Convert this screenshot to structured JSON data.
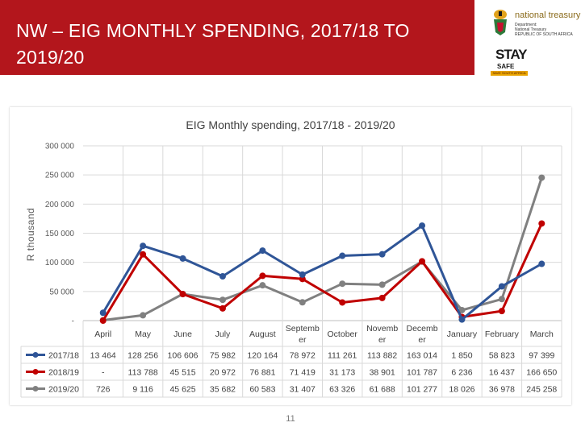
{
  "slide": {
    "title": "NW – EIG MONTHLY SPENDING, 2017/18 TO 2019/20",
    "page_number": "11"
  },
  "logos": {
    "national_treasury": {
      "name": "national treasury",
      "line1": "Department:",
      "line2": "National Treasury",
      "line3": "REPUBLIC OF SOUTH AFRICA"
    },
    "stay_safe": {
      "main": "STAY",
      "sub": "SAFE",
      "tagline": "SAVE SOUTH AFRICA"
    }
  },
  "colors": {
    "title_bar": "#b3161c",
    "series": [
      "#2f5597",
      "#c00000",
      "#808080"
    ]
  },
  "chart_data": {
    "type": "line",
    "title": "EIG Monthly spending, 2017/18 - 2019/20",
    "ylabel": "R thousand",
    "ylim": [
      0,
      300000
    ],
    "yticks": [
      "-",
      "50 000",
      "100 000",
      "150 000",
      "200 000",
      "250 000",
      "300 000"
    ],
    "grid": true,
    "legend": "table-below",
    "categories": [
      "April",
      "May",
      "June",
      "July",
      "August",
      "September",
      "October",
      "November",
      "December",
      "January",
      "February",
      "March"
    ],
    "category_lines": [
      [
        "April"
      ],
      [
        "May"
      ],
      [
        "June"
      ],
      [
        "July"
      ],
      [
        "August"
      ],
      [
        "Septemb",
        "er"
      ],
      [
        "October"
      ],
      [
        "Novemb",
        "er"
      ],
      [
        "Decemb",
        "er"
      ],
      [
        "January"
      ],
      [
        "February"
      ],
      [
        "March"
      ]
    ],
    "series": [
      {
        "name": "2017/18",
        "values": [
          13464,
          128256,
          106606,
          75982,
          120164,
          78972,
          111261,
          113882,
          163014,
          1850,
          58823,
          97399
        ],
        "labels": [
          "13 464",
          "128 256",
          "106 606",
          "75 982",
          "120 164",
          "78 972",
          "111 261",
          "113 882",
          "163 014",
          "1 850",
          "58 823",
          "97 399"
        ]
      },
      {
        "name": "2018/19",
        "values": [
          0,
          113788,
          45515,
          20972,
          76881,
          71419,
          31173,
          38901,
          101787,
          6236,
          16437,
          166650
        ],
        "labels": [
          "-",
          "113 788",
          "45 515",
          "20 972",
          "76 881",
          "71 419",
          "31 173",
          "38 901",
          "101 787",
          "6 236",
          "16 437",
          "166 650"
        ]
      },
      {
        "name": "2019/20",
        "values": [
          726,
          9116,
          45625,
          35682,
          60583,
          31407,
          63326,
          61688,
          101277,
          18026,
          36978,
          245258
        ],
        "labels": [
          "726",
          "9 116",
          "45 625",
          "35 682",
          "60 583",
          "31 407",
          "63 326",
          "61 688",
          "101 277",
          "18 026",
          "36 978",
          "245 258"
        ]
      }
    ]
  }
}
